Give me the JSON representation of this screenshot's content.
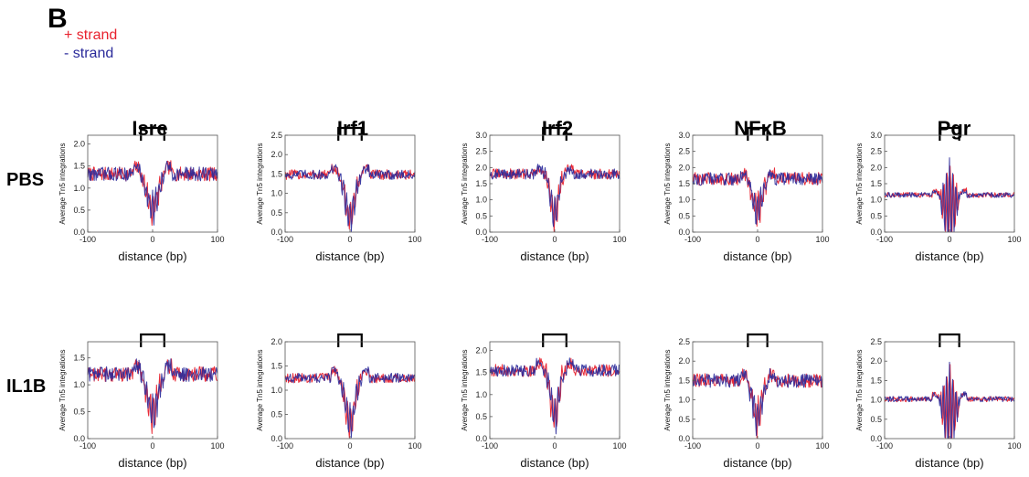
{
  "panel_label": "B",
  "legend": {
    "plus": {
      "label": "+ strand",
      "color": "#e8222e"
    },
    "minus": {
      "label": "- strand",
      "color": "#2a2a9a"
    }
  },
  "columns": [
    "Isre",
    "Irf1",
    "Irf2",
    "NFκB",
    "Pgr"
  ],
  "rows": [
    "PBS",
    "IL1B"
  ],
  "chart_data": [
    {
      "type": "line",
      "row": "PBS",
      "column": "Isre",
      "xlabel": "distance (bp)",
      "ylabel": "Average Tn5 integrations",
      "xlim": [
        -100,
        100
      ],
      "ylim": [
        0,
        2.2
      ],
      "xticks": [
        "-100",
        "0",
        "100"
      ],
      "yticks": [
        "0.0",
        "0.5",
        "1.0",
        "1.5",
        "2.0"
      ],
      "bracket": [
        -18,
        18
      ],
      "baseline": 1.32,
      "dip_depth": 0.8,
      "dip_width": 8,
      "noise": 0.16,
      "motif_spikes": 0.35,
      "series": [
        {
          "label": "+ strand",
          "color": "#e8222e"
        },
        {
          "label": "- strand",
          "color": "#2a2a9a"
        }
      ]
    },
    {
      "type": "line",
      "row": "PBS",
      "column": "Irf1",
      "xlabel": "distance (bp)",
      "ylabel": "Average Tn5 integrations",
      "xlim": [
        -100,
        100
      ],
      "ylim": [
        0,
        2.5
      ],
      "xticks": [
        "-100",
        "0",
        "100"
      ],
      "yticks": [
        "0.0",
        "0.5",
        "1.0",
        "1.5",
        "2.0",
        "2.5"
      ],
      "bracket": [
        -18,
        18
      ],
      "baseline": 1.48,
      "dip_depth": 1.1,
      "dip_width": 7,
      "noise": 0.13,
      "motif_spikes": 0.4,
      "series": [
        {
          "label": "+ strand",
          "color": "#e8222e"
        },
        {
          "label": "- strand",
          "color": "#2a2a9a"
        }
      ]
    },
    {
      "type": "line",
      "row": "PBS",
      "column": "Irf2",
      "xlabel": "distance (bp)",
      "ylabel": "Average Tn5 integrations",
      "xlim": [
        -100,
        100
      ],
      "ylim": [
        0,
        3.0
      ],
      "xticks": [
        "-100",
        "0",
        "100"
      ],
      "yticks": [
        "0.0",
        "0.5",
        "1.0",
        "1.5",
        "2.0",
        "2.5",
        "3.0"
      ],
      "bracket": [
        -18,
        18
      ],
      "baseline": 1.8,
      "dip_depth": 1.25,
      "dip_width": 6,
      "noise": 0.16,
      "motif_spikes": 0.45,
      "series": [
        {
          "label": "+ strand",
          "color": "#e8222e"
        },
        {
          "label": "- strand",
          "color": "#2a2a9a"
        }
      ]
    },
    {
      "type": "line",
      "row": "PBS",
      "column": "NFκB",
      "xlabel": "distance (bp)",
      "ylabel": "Average Tn5 integrations",
      "xlim": [
        -100,
        100
      ],
      "ylim": [
        0,
        3.0
      ],
      "xticks": [
        "-100",
        "0",
        "100"
      ],
      "yticks": [
        "0.0",
        "0.5",
        "1.0",
        "1.5",
        "2.0",
        "2.5",
        "3.0"
      ],
      "bracket": [
        -15,
        15
      ],
      "baseline": 1.65,
      "dip_depth": 1.0,
      "dip_width": 7,
      "noise": 0.2,
      "motif_spikes": 0.5,
      "series": [
        {
          "label": "+ strand",
          "color": "#e8222e"
        },
        {
          "label": "- strand",
          "color": "#2a2a9a"
        }
      ]
    },
    {
      "type": "line",
      "row": "PBS",
      "column": "Pgr",
      "xlabel": "distance (bp)",
      "ylabel": "Average Tn5 integrations",
      "xlim": [
        -100,
        100
      ],
      "ylim": [
        0,
        3.0
      ],
      "xticks": [
        "-100",
        "0",
        "100"
      ],
      "yticks": [
        "0.0",
        "0.5",
        "1.0",
        "1.5",
        "2.0",
        "2.5",
        "3.0"
      ],
      "bracket": [
        -15,
        15
      ],
      "baseline": 1.15,
      "dip_depth": 0.4,
      "dip_width": 10,
      "noise": 0.08,
      "motif_spikes": 1.5,
      "series": [
        {
          "label": "+ strand",
          "color": "#e8222e"
        },
        {
          "label": "- strand",
          "color": "#2a2a9a"
        }
      ]
    },
    {
      "type": "line",
      "row": "IL1B",
      "column": "Isre",
      "xlabel": "distance (bp)",
      "ylabel": "Average Tn5 integrations",
      "xlim": [
        -100,
        100
      ],
      "ylim": [
        0,
        1.8
      ],
      "xticks": [
        "-100",
        "0",
        "100"
      ],
      "yticks": [
        "0.0",
        "0.5",
        "1.0",
        "1.5"
      ],
      "bracket": [
        -18,
        18
      ],
      "baseline": 1.2,
      "dip_depth": 0.7,
      "dip_width": 8,
      "noise": 0.14,
      "motif_spikes": 0.35,
      "series": [
        {
          "label": "+ strand",
          "color": "#e8222e"
        },
        {
          "label": "- strand",
          "color": "#2a2a9a"
        }
      ]
    },
    {
      "type": "line",
      "row": "IL1B",
      "column": "Irf1",
      "xlabel": "distance (bp)",
      "ylabel": "Average Tn5 integrations",
      "xlim": [
        -100,
        100
      ],
      "ylim": [
        0,
        2.0
      ],
      "xticks": [
        "-100",
        "0",
        "100"
      ],
      "yticks": [
        "0.0",
        "0.5",
        "1.0",
        "1.5",
        "2.0"
      ],
      "bracket": [
        -18,
        18
      ],
      "baseline": 1.25,
      "dip_depth": 0.95,
      "dip_width": 7,
      "noise": 0.1,
      "motif_spikes": 0.35,
      "series": [
        {
          "label": "+ strand",
          "color": "#e8222e"
        },
        {
          "label": "- strand",
          "color": "#2a2a9a"
        }
      ]
    },
    {
      "type": "line",
      "row": "IL1B",
      "column": "Irf2",
      "xlabel": "distance (bp)",
      "ylabel": "Average Tn5 integrations",
      "xlim": [
        -100,
        100
      ],
      "ylim": [
        0,
        2.2
      ],
      "xticks": [
        "-100",
        "0",
        "100"
      ],
      "yticks": [
        "0.0",
        "0.5",
        "1.0",
        "1.5",
        "2.0"
      ],
      "bracket": [
        -18,
        18
      ],
      "baseline": 1.55,
      "dip_depth": 1.05,
      "dip_width": 6,
      "noise": 0.14,
      "motif_spikes": 0.4,
      "series": [
        {
          "label": "+ strand",
          "color": "#e8222e"
        },
        {
          "label": "- strand",
          "color": "#2a2a9a"
        }
      ]
    },
    {
      "type": "line",
      "row": "IL1B",
      "column": "NFκB",
      "xlabel": "distance (bp)",
      "ylabel": "Average Tn5 integrations",
      "xlim": [
        -100,
        100
      ],
      "ylim": [
        0,
        2.5
      ],
      "xticks": [
        "-100",
        "0",
        "100"
      ],
      "yticks": [
        "0.0",
        "0.5",
        "1.0",
        "1.5",
        "2.0",
        "2.5"
      ],
      "bracket": [
        -15,
        15
      ],
      "baseline": 1.5,
      "dip_depth": 0.95,
      "dip_width": 7,
      "noise": 0.18,
      "motif_spikes": 0.5,
      "series": [
        {
          "label": "+ strand",
          "color": "#e8222e"
        },
        {
          "label": "- strand",
          "color": "#2a2a9a"
        }
      ]
    },
    {
      "type": "line",
      "row": "IL1B",
      "column": "Pgr",
      "xlabel": "distance (bp)",
      "ylabel": "Average Tn5 integrations",
      "xlim": [
        -100,
        100
      ],
      "ylim": [
        0,
        2.5
      ],
      "xticks": [
        "-100",
        "0",
        "100"
      ],
      "yticks": [
        "0.0",
        "0.5",
        "1.0",
        "1.5",
        "2.0",
        "2.5"
      ],
      "bracket": [
        -15,
        15
      ],
      "baseline": 1.02,
      "dip_depth": 0.35,
      "dip_width": 10,
      "noise": 0.07,
      "motif_spikes": 1.3,
      "series": [
        {
          "label": "+ strand",
          "color": "#e8222e"
        },
        {
          "label": "- strand",
          "color": "#2a2a9a"
        }
      ]
    }
  ]
}
